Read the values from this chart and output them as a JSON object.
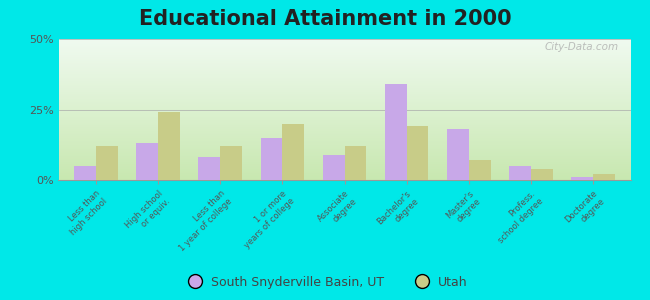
{
  "title": "Educational Attainment in 2000",
  "categories": [
    "Less than\nhigh school",
    "High school\nor equiv.",
    "Less than\n1 year of college",
    "1 or more\nyears of college",
    "Associate\ndegree",
    "Bachelor's\ndegree",
    "Master's\ndegree",
    "Profess.\nschool degree",
    "Doctorate\ndegree"
  ],
  "south_snyderville": [
    5,
    13,
    8,
    15,
    9,
    34,
    18,
    5,
    1
  ],
  "utah": [
    12,
    24,
    12,
    20,
    12,
    19,
    7,
    4,
    2
  ],
  "south_snyderville_color": "#c8a8e8",
  "utah_color": "#c8cc88",
  "ylim": [
    0,
    50
  ],
  "yticks": [
    0,
    25,
    50
  ],
  "ytick_labels": [
    "0%",
    "25%",
    "50%"
  ],
  "plot_bg_top": "#c8e8b0",
  "plot_bg_bottom": "#f0faf0",
  "outer_background": "#00e8e8",
  "watermark": "City-Data.com",
  "legend_label_1": "South Snyderville Basin, UT",
  "legend_label_2": "Utah",
  "title_fontsize": 15,
  "bar_width": 0.35
}
